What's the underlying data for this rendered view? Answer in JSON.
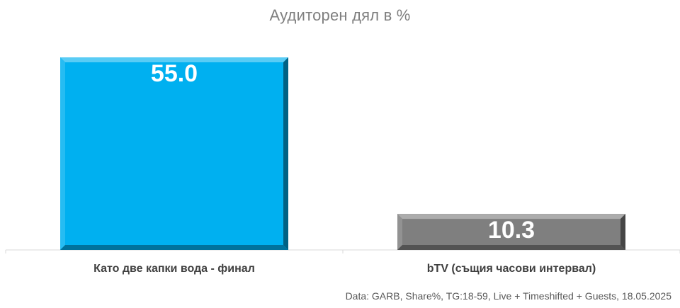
{
  "chart_data": {
    "type": "bar",
    "title": "Аудиторен дял в %",
    "categories": [
      "Като две капки вода - финал",
      "bTV (същия часови интервал)"
    ],
    "values": [
      55.0,
      10.3
    ],
    "colors": [
      "#00b0f0",
      "#7f7f7f"
    ],
    "ylim": [
      0,
      60
    ],
    "grid": false,
    "legend": "none"
  },
  "footer": {
    "note": "Data: GARB, Share%, TG:18-59, Live + Timeshifted + Guests, 18.05.2025"
  }
}
